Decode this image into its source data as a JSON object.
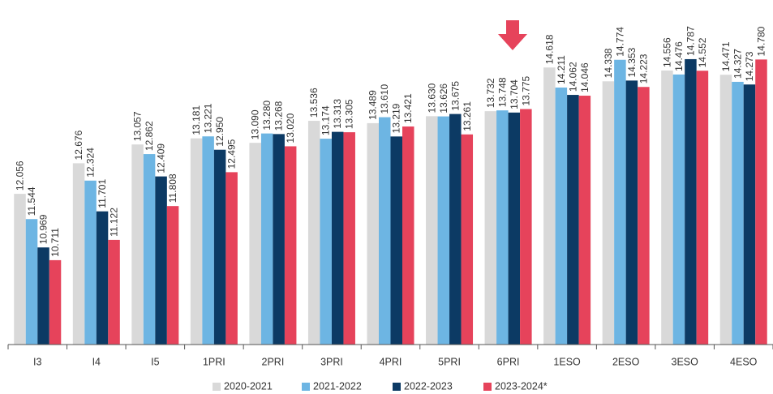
{
  "chart_data": {
    "type": "bar",
    "categories": [
      "I3",
      "I4",
      "I5",
      "1PRI",
      "2PRI",
      "3PRI",
      "4PRI",
      "5PRI",
      "6PRI",
      "1ESO",
      "2ESO",
      "3ESO",
      "4ESO"
    ],
    "series": [
      {
        "name": "2020-2021",
        "color": "#d9d9d9",
        "values": [
          12.056,
          12.676,
          13.057,
          13.181,
          13.09,
          13.536,
          13.489,
          13.63,
          13.732,
          14.618,
          14.338,
          14.556,
          14.471
        ],
        "value_labels": [
          "12.056",
          "12.676",
          "13.057",
          "13.181",
          "13.090",
          "13.536",
          "13.489",
          "13.630",
          "13.732",
          "14.618",
          "14.338",
          "14.556",
          "14.471"
        ]
      },
      {
        "name": "2021-2022",
        "color": "#6db5e3",
        "values": [
          11.544,
          12.324,
          12.862,
          13.221,
          13.28,
          13.174,
          13.61,
          13.626,
          13.748,
          14.211,
          14.774,
          14.476,
          14.327
        ],
        "value_labels": [
          "11.544",
          "12.324",
          "12.862",
          "13.221",
          "13.280",
          "13.174",
          "13.610",
          "13.626",
          "13.748",
          "14.211",
          "14.774",
          "14.476",
          "14.327"
        ]
      },
      {
        "name": "2022-2023",
        "color": "#0c3a64",
        "values": [
          10.969,
          11.701,
          12.409,
          12.95,
          13.268,
          13.313,
          13.219,
          13.675,
          13.704,
          14.062,
          14.353,
          14.787,
          14.273
        ],
        "value_labels": [
          "10.969",
          "11.701",
          "12.409",
          "12.950",
          "13.268",
          "13.313",
          "13.219",
          "13.675",
          "13.704",
          "14.062",
          "14.353",
          "14.787",
          "14.273"
        ]
      },
      {
        "name": "2023-2024*",
        "color": "#e6435b",
        "values": [
          10.711,
          11.122,
          11.808,
          12.495,
          13.02,
          13.305,
          13.421,
          13.261,
          13.775,
          14.046,
          14.223,
          14.552,
          14.78
        ],
        "value_labels": [
          "10.711",
          "11.122",
          "11.808",
          "12.495",
          "13.020",
          "13.305",
          "13.421",
          "13.261",
          "13.775",
          "14.046",
          "14.223",
          "14.552",
          "14.780"
        ]
      }
    ],
    "ylim": [
      9,
      15
    ]
  }
}
